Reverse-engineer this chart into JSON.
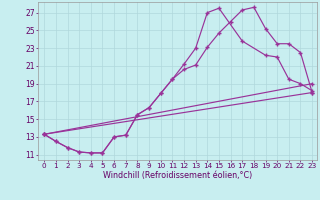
{
  "bg_color": "#c8eef0",
  "line_color": "#993399",
  "grid_color": "#b0d8dc",
  "xlabel": "Windchill (Refroidissement éolien,°C)",
  "xticks": [
    0,
    1,
    2,
    3,
    4,
    5,
    6,
    7,
    8,
    9,
    10,
    11,
    12,
    13,
    14,
    15,
    16,
    17,
    18,
    19,
    20,
    21,
    22,
    23
  ],
  "yticks": [
    11,
    13,
    15,
    17,
    19,
    21,
    23,
    25,
    27
  ],
  "xlim": [
    -0.5,
    23.4
  ],
  "ylim": [
    10.4,
    28.2
  ],
  "lines": [
    {
      "x": [
        0,
        1,
        2,
        3,
        4,
        5,
        6,
        7,
        8,
        9,
        10,
        11,
        12,
        13,
        14,
        15,
        16,
        17,
        18,
        19,
        20,
        21,
        22,
        23
      ],
      "y": [
        13.3,
        12.5,
        11.8,
        11.3,
        11.2,
        11.2,
        13.0,
        13.2,
        15.5,
        16.3,
        17.9,
        19.5,
        20.6,
        21.1,
        23.1,
        24.7,
        26.0,
        27.3,
        27.6,
        25.2,
        23.5,
        23.5,
        22.5,
        18.0
      ]
    },
    {
      "x": [
        0,
        1,
        2,
        3,
        4,
        5,
        6,
        7,
        8,
        9,
        10,
        11,
        12,
        13,
        14,
        15,
        17,
        19,
        20,
        21,
        22,
        23
      ],
      "y": [
        13.3,
        12.5,
        11.8,
        11.3,
        11.2,
        11.2,
        13.0,
        13.2,
        15.5,
        16.3,
        17.9,
        19.5,
        21.2,
        23.0,
        27.0,
        27.5,
        23.8,
        22.2,
        22.0,
        19.5,
        19.0,
        18.2
      ]
    },
    {
      "x": [
        0,
        23
      ],
      "y": [
        13.3,
        19.0
      ]
    },
    {
      "x": [
        0,
        23
      ],
      "y": [
        13.3,
        18.0
      ]
    }
  ]
}
